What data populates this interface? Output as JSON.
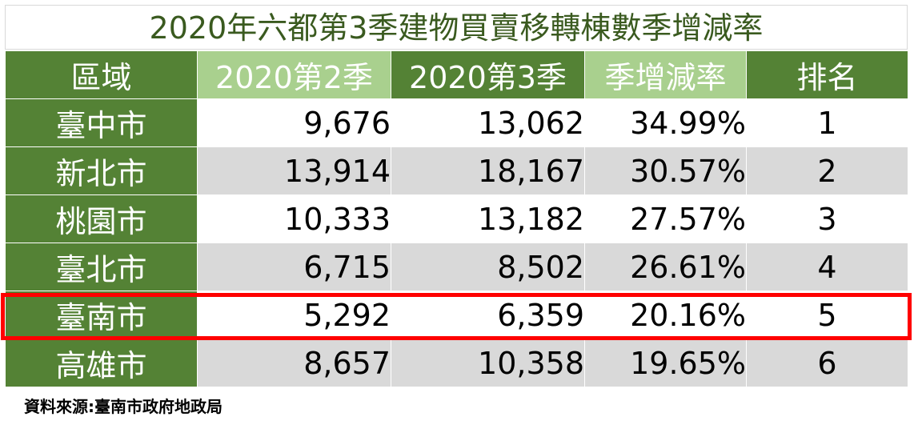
{
  "chart_data": {
    "type": "table",
    "title": "2020年六都第3季建物買賣移轉棟數季增減率",
    "columns": [
      "區域",
      "2020第2季",
      "2020第3季",
      "季增減率",
      "排名"
    ],
    "rows": [
      {
        "region": "臺中市",
        "q2": "9,676",
        "q3": "13,062",
        "rate": "34.99%",
        "rank": "1"
      },
      {
        "region": "新北市",
        "q2": "13,914",
        "q3": "18,167",
        "rate": "30.57%",
        "rank": "2"
      },
      {
        "region": "桃園市",
        "q2": "10,333",
        "q3": "13,182",
        "rate": "27.57%",
        "rank": "3"
      },
      {
        "region": "臺北市",
        "q2": "6,715",
        "q3": "8,502",
        "rate": "26.61%",
        "rank": "4"
      },
      {
        "region": "臺南市",
        "q2": "5,292",
        "q3": "6,359",
        "rate": "20.16%",
        "rank": "5"
      },
      {
        "region": "高雄市",
        "q2": "8,657",
        "q3": "10,358",
        "rate": "19.65%",
        "rank": "6"
      }
    ],
    "highlighted_row": "臺南市",
    "source": "資料來源:臺南市政府地政局"
  },
  "colors": {
    "header_dark": "#548235",
    "header_light": "#a9d08e",
    "row_alt": "#d9d9d9",
    "highlight": "#ff0000",
    "title": "#3a5a1f"
  }
}
